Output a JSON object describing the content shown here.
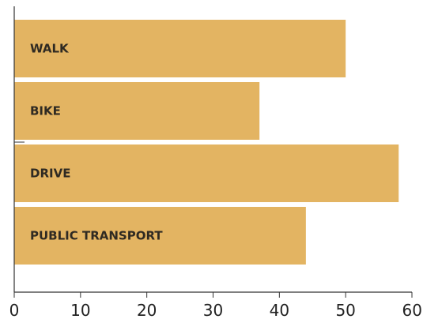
{
  "chart_data": {
    "type": "bar",
    "orientation": "horizontal",
    "categories": [
      "WALK",
      "BIKE",
      "DRIVE",
      "PUBLIC TRANSPORT"
    ],
    "values": [
      50,
      37,
      58,
      44
    ],
    "xlim": [
      0,
      60
    ],
    "xticks": [
      0,
      10,
      20,
      30,
      40,
      50,
      60
    ],
    "title": "",
    "xlabel": "",
    "ylabel": "",
    "grid": false,
    "legend": "none",
    "colors": {
      "bar": "#E3B462",
      "axis": "#333333",
      "label": "#2F2A22"
    }
  }
}
